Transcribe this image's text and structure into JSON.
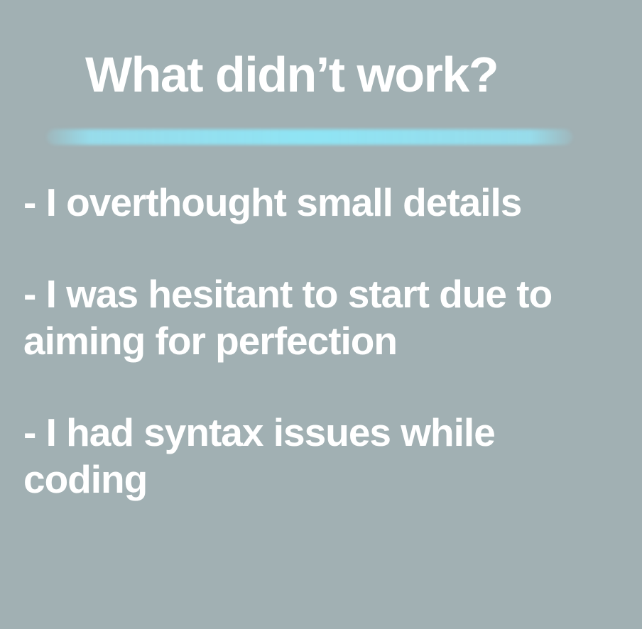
{
  "slide": {
    "title": "What didn’t work?",
    "bullets": [
      "- I overthought small details",
      "- I was hesitant to start due to aiming for perfection",
      "- I had syntax issues while coding"
    ]
  },
  "colors": {
    "background": "#a1b0b3",
    "text": "#ffffff",
    "accent_underline": "#8fe4f4"
  }
}
